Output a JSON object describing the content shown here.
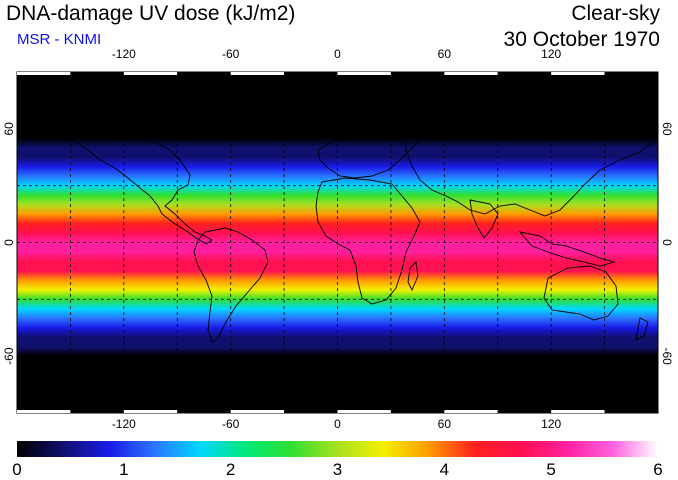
{
  "header": {
    "title": "DNA-damage UV dose (kJ/m2)",
    "credit": "MSR - KNMI",
    "condition": "Clear-sky",
    "date": "30 October 1970"
  },
  "map": {
    "projection": "equirectangular",
    "lon_range": [
      -180,
      180
    ],
    "lat_range": [
      -90,
      90
    ],
    "grid_spacing_lon": 30,
    "grid_spacing_lat": 30,
    "lon_ticks": [
      -120,
      -60,
      0,
      60,
      120
    ],
    "lat_ticks": [
      60,
      0,
      -60
    ],
    "lon_tick_labels": [
      "-120",
      "-60",
      "0",
      "60",
      "120"
    ],
    "lat_tick_labels": [
      "60",
      "0",
      "-60"
    ],
    "field": "DNA-damage UV dose, zonal maximum near equator (~4.5-5.5), near zero at poles"
  },
  "colorbar": {
    "min": 0,
    "max": 6,
    "labels": [
      "0",
      "1",
      "2",
      "3",
      "4",
      "5",
      "6"
    ],
    "colors": [
      "#000000",
      "#10106e",
      "#1a1ae8",
      "#2a74ff",
      "#00d8ff",
      "#00e878",
      "#30e030",
      "#a8e020",
      "#f4f000",
      "#ff9a00",
      "#ff2020",
      "#ff1050",
      "#ff20a0",
      "#ff60e0",
      "#ffffff"
    ]
  }
}
